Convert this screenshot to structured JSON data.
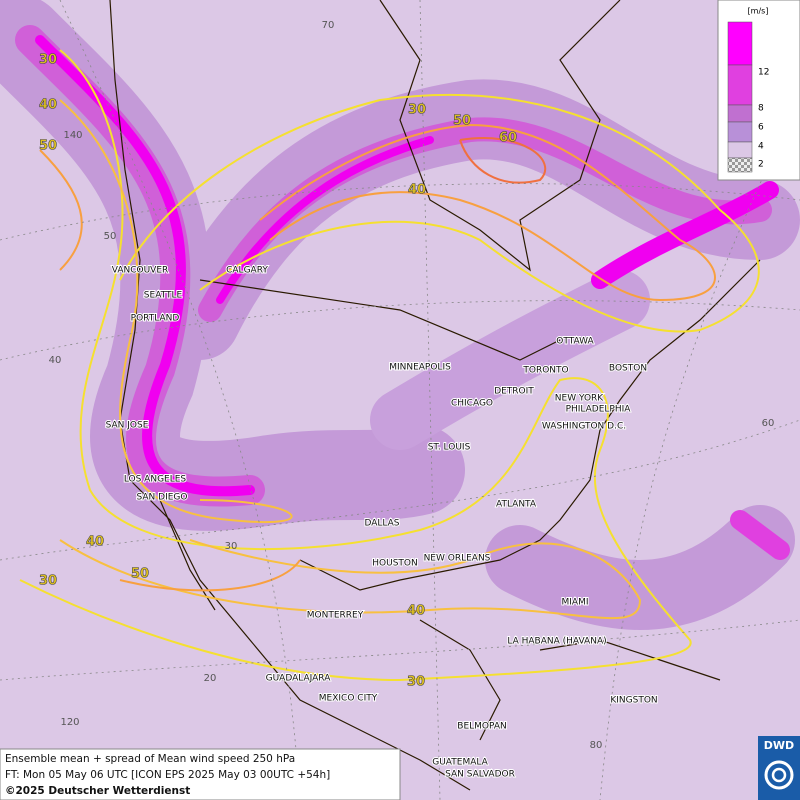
{
  "map": {
    "title": "Ensemble mean + spread of Mean wind speed 250 hPa",
    "forecast_time": "FT: Mon 05 May 06 UTC [ICON EPS 2025 May 03 00UTC +54h]",
    "copyright": "©2025 Deutscher Wetterdienst",
    "logo": "DWD",
    "legend": {
      "unit": "[m/s]",
      "ticks": [
        12,
        8,
        6,
        4,
        2
      ]
    },
    "cities": [
      "VANCOUVER",
      "CALGARY",
      "SEATTLE",
      "PORTLAND",
      "SAN JOSE",
      "LOS ANGELES",
      "SAN DIEGO",
      "MINNEAPOLIS",
      "TORONTO",
      "OTTAWA",
      "BOSTON",
      "DETROIT",
      "NEW YORK",
      "PHILADELPHIA",
      "CHICAGO",
      "WASHINGTON D.C.",
      "ST. LOUIS",
      "ATLANTA",
      "DALLAS",
      "HOUSTON",
      "NEW ORLEANS",
      "MIAMI",
      "MONTERREY",
      "LA HABANA (HAVANA)",
      "GUADALAJARA",
      "MEXICO CITY",
      "KINGSTON",
      "BELMOPAN",
      "GUATEMALA",
      "SAN SALVADOR"
    ],
    "contour_labels": [
      30,
      40,
      50,
      30,
      50,
      60,
      40,
      40,
      50,
      30,
      40,
      30
    ],
    "graticule_labels": [
      70,
      140,
      50,
      40,
      30,
      20,
      120,
      80,
      60
    ]
  }
}
